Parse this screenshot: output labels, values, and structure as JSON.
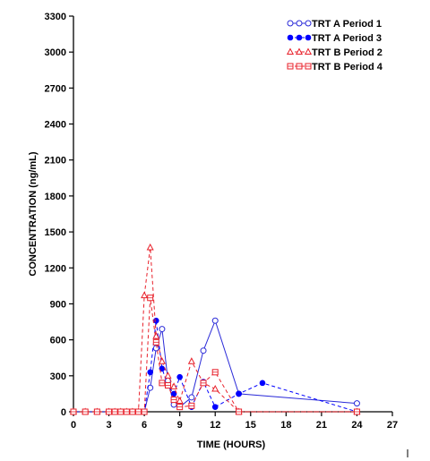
{
  "chart_data": {
    "type": "line",
    "xlabel": "TIME (HOURS)",
    "ylabel": "CONCENTRATION (ng/mL)",
    "xlim": [
      0,
      27
    ],
    "ylim": [
      0,
      3300
    ],
    "xticks": [
      0,
      3,
      6,
      9,
      12,
      15,
      18,
      21,
      24,
      27
    ],
    "yticks": [
      0,
      300,
      600,
      900,
      1200,
      1500,
      1800,
      2100,
      2400,
      2700,
      3000,
      3300
    ],
    "legend_position": "top-right",
    "grid": false,
    "series": [
      {
        "name": "TRT A Period 1",
        "color": "#2a2ad8",
        "marker": "open-circle",
        "line": "solid",
        "x": [
          0,
          1,
          2,
          3,
          3.5,
          4,
          4.5,
          5,
          5.5,
          6,
          6.5,
          7,
          7.5,
          8,
          8.5,
          9,
          10,
          11,
          12,
          14,
          24
        ],
        "y": [
          0,
          0,
          0,
          0,
          0,
          0,
          0,
          0,
          0,
          0,
          200,
          530,
          690,
          260,
          60,
          40,
          120,
          510,
          760,
          150,
          70
        ]
      },
      {
        "name": "TRT A Period 3",
        "color": "#0000ff",
        "marker": "filled-dot",
        "line": "dashed",
        "x": [
          0,
          1,
          2,
          3,
          3.5,
          4,
          4.5,
          5,
          5.5,
          6,
          6.5,
          7,
          7.5,
          8,
          8.5,
          9,
          10,
          11,
          12,
          14,
          16,
          24
        ],
        "y": [
          0,
          0,
          0,
          0,
          0,
          0,
          0,
          0,
          0,
          0,
          330,
          760,
          360,
          220,
          150,
          290,
          40,
          250,
          40,
          150,
          240,
          0
        ]
      },
      {
        "name": "TRT B Period 2",
        "color": "#e8202a",
        "marker": "open-triangle",
        "line": "dashed",
        "x": [
          0,
          1,
          2,
          3,
          3.5,
          4,
          4.5,
          5,
          5.5,
          6,
          6.5,
          7,
          7.5,
          8,
          8.5,
          9,
          10,
          11,
          12,
          14,
          24
        ],
        "y": [
          0,
          0,
          0,
          0,
          0,
          0,
          0,
          0,
          0,
          970,
          1370,
          630,
          420,
          300,
          210,
          90,
          420,
          240,
          190,
          0,
          0
        ]
      },
      {
        "name": "TRT B Period 4",
        "color": "#e8202a",
        "marker": "open-square",
        "line": "dashed",
        "x": [
          0,
          1,
          2,
          3,
          3.5,
          4,
          4.5,
          5,
          5.5,
          6,
          6.5,
          7,
          7.5,
          8,
          8.5,
          9,
          10,
          11,
          12,
          14,
          24
        ],
        "y": [
          0,
          0,
          0,
          0,
          0,
          0,
          0,
          0,
          0,
          0,
          950,
          580,
          240,
          220,
          100,
          40,
          50,
          240,
          330,
          0,
          0
        ]
      }
    ]
  }
}
